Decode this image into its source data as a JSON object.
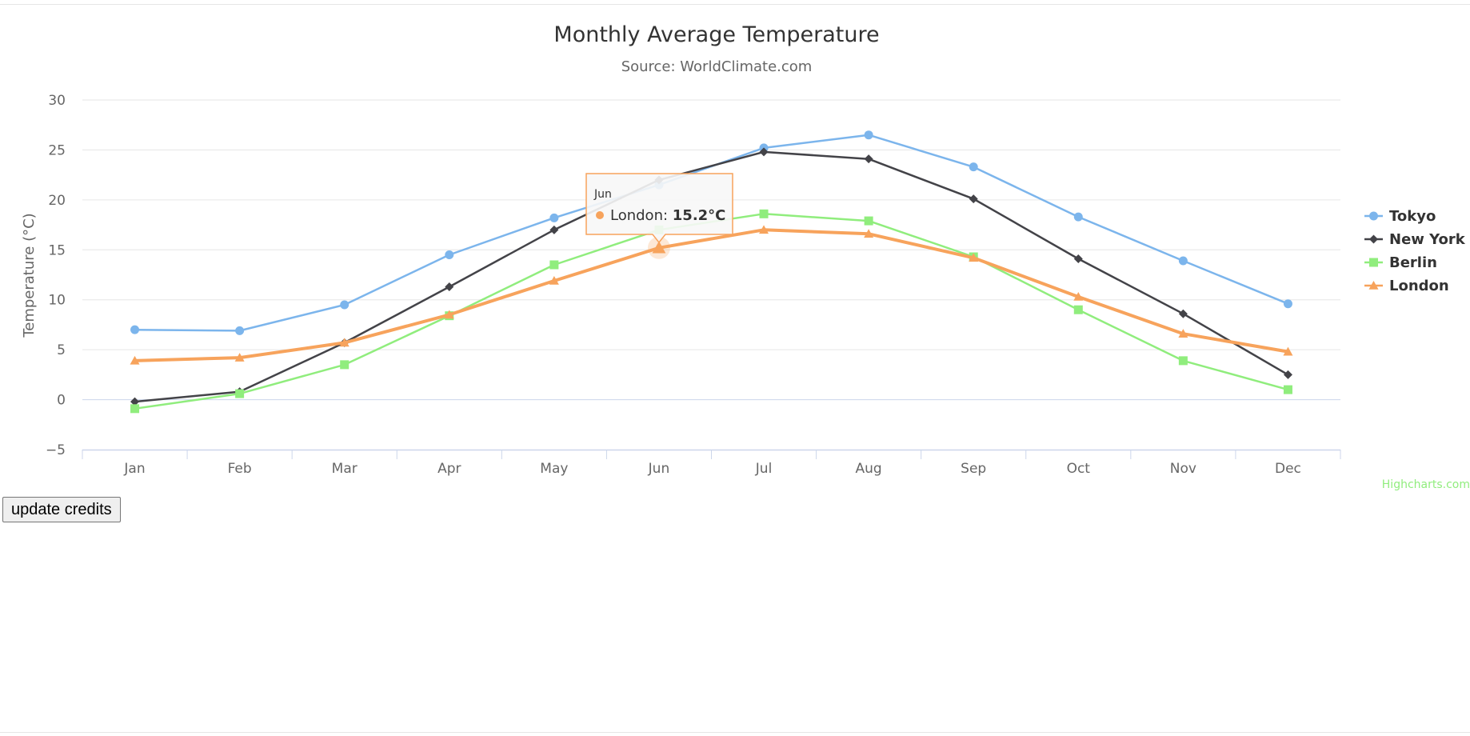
{
  "chart_data": {
    "type": "line",
    "title": "Monthly Average Temperature",
    "subtitle": "Source: WorldClimate.com",
    "ylabel": "Temperature (°C)",
    "xlabel": "",
    "categories": [
      "Jan",
      "Feb",
      "Mar",
      "Apr",
      "May",
      "Jun",
      "Jul",
      "Aug",
      "Sep",
      "Oct",
      "Nov",
      "Dec"
    ],
    "ylim": [
      -5,
      30
    ],
    "yticks": [
      -5,
      0,
      5,
      10,
      15,
      20,
      25,
      30
    ],
    "grid": true,
    "legend_position": "right",
    "series": [
      {
        "name": "Tokyo",
        "color": "#7cb5ec",
        "marker": "circle",
        "values": [
          7.0,
          6.9,
          9.5,
          14.5,
          18.2,
          21.5,
          25.2,
          26.5,
          23.3,
          18.3,
          13.9,
          9.6
        ]
      },
      {
        "name": "New York",
        "color": "#434348",
        "marker": "diamond",
        "values": [
          -0.2,
          0.8,
          5.7,
          11.3,
          17.0,
          22.0,
          24.8,
          24.1,
          20.1,
          14.1,
          8.6,
          2.5
        ]
      },
      {
        "name": "Berlin",
        "color": "#90ed7d",
        "marker": "square",
        "values": [
          -0.9,
          0.6,
          3.5,
          8.4,
          13.5,
          17.0,
          18.6,
          17.9,
          14.3,
          9.0,
          3.9,
          1.0
        ]
      },
      {
        "name": "London",
        "color": "#f7a35c",
        "marker": "triangle",
        "values": [
          3.9,
          4.2,
          5.7,
          8.5,
          11.9,
          15.2,
          17.0,
          16.6,
          14.2,
          10.3,
          6.6,
          4.8
        ]
      }
    ],
    "tooltip": {
      "category": "Jun",
      "series": "London",
      "label": "London: ",
      "value_text": "15.2°C",
      "color": "#f7a35c"
    }
  },
  "credits": "Highcharts.com",
  "button": {
    "label": "update credits"
  }
}
